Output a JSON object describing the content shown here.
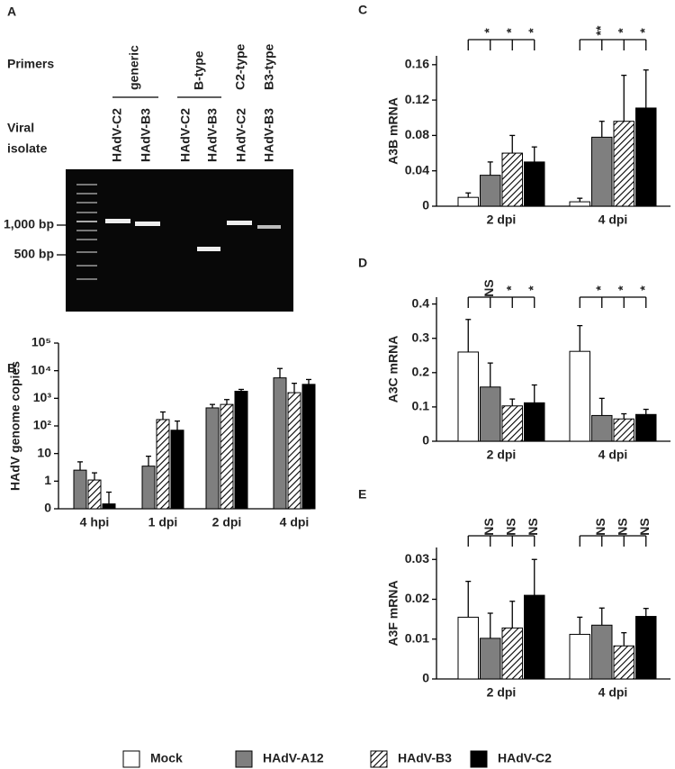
{
  "panel_a": {
    "panel": "A",
    "primers_label": "Primers",
    "isolate_label": [
      "Viral",
      "isolate"
    ],
    "primers": [
      "generic",
      "B-type",
      "C2-type",
      "B3-type"
    ],
    "lanes": [
      "HAdV-C2",
      "HAdV-B3",
      "HAdV-C2",
      "HAdV-B3",
      "HAdV-C2",
      "HAdV-B3"
    ],
    "markers": [
      "1,000 bp",
      "500 bp"
    ]
  },
  "legend": [
    {
      "name": "Mock",
      "color": "#ffffff"
    },
    {
      "name": "HAdV-A12",
      "color": "#7f7f7f"
    },
    {
      "name": "HAdV-B3",
      "color": "hatch"
    },
    {
      "name": "HAdV-C2",
      "color": "#000000"
    }
  ],
  "chart_data": [
    {
      "type": "bar",
      "panel": "B",
      "ylabel": "HAdV genome copies",
      "log": true,
      "ylim": [
        0.1,
        100000
      ],
      "yticks": [
        0,
        1,
        10,
        {
          "value": 100,
          "label": "10²"
        },
        {
          "value": 1000,
          "label": "10³"
        },
        {
          "value": 10000,
          "label": "10⁴"
        },
        {
          "value": 100000,
          "label": "10⁵"
        }
      ],
      "categories": [
        "4 hpi",
        "1 dpi",
        "2 dpi",
        "4 dpi"
      ],
      "series": [
        {
          "color": "#7f7f7f",
          "values": [
            2.5,
            3.5,
            450,
            5500
          ],
          "errors": [
            2.5,
            4.5,
            150,
            6500
          ]
        },
        {
          "color": "hatch",
          "values": [
            1.1,
            170,
            600,
            1600
          ],
          "errors": [
            0.9,
            150,
            300,
            1900
          ]
        },
        {
          "color": "#000000",
          "values": [
            0.15,
            70,
            1800,
            3200
          ],
          "errors": [
            0.25,
            80,
            300,
            1600
          ]
        }
      ]
    },
    {
      "type": "bar",
      "panel": "C",
      "ylabel": "A3B mRNA",
      "ylim": [
        0,
        0.17
      ],
      "yticks": [
        0,
        0.04,
        0.08,
        0.12,
        0.16
      ],
      "categories": [
        "2 dpi",
        "4 dpi"
      ],
      "annotations": [
        [
          "*",
          "*",
          "*"
        ],
        [
          "**",
          "*",
          "*"
        ]
      ],
      "series": [
        {
          "color": "#ffffff",
          "values": [
            0.01,
            0.005
          ],
          "errors": [
            0.005,
            0.004
          ]
        },
        {
          "color": "#7f7f7f",
          "values": [
            0.035,
            0.078
          ],
          "errors": [
            0.015,
            0.018
          ]
        },
        {
          "color": "hatch",
          "values": [
            0.06,
            0.096
          ],
          "errors": [
            0.02,
            0.052
          ]
        },
        {
          "color": "#000000",
          "values": [
            0.05,
            0.111
          ],
          "errors": [
            0.017,
            0.043
          ]
        }
      ]
    },
    {
      "type": "bar",
      "panel": "D",
      "ylabel": "A3C mRNA",
      "ylim": [
        0,
        0.42
      ],
      "yticks": [
        0,
        0.1,
        0.2,
        0.3,
        0.4
      ],
      "categories": [
        "2 dpi",
        "4 dpi"
      ],
      "annotations": [
        [
          "NS",
          "*",
          "*"
        ],
        [
          "*",
          "*",
          "*"
        ]
      ],
      "series": [
        {
          "color": "#ffffff",
          "values": [
            0.26,
            0.262
          ],
          "errors": [
            0.095,
            0.075
          ]
        },
        {
          "color": "#7f7f7f",
          "values": [
            0.158,
            0.075
          ],
          "errors": [
            0.07,
            0.05
          ]
        },
        {
          "color": "hatch",
          "values": [
            0.103,
            0.065
          ],
          "errors": [
            0.02,
            0.015
          ]
        },
        {
          "color": "#000000",
          "values": [
            0.112,
            0.078
          ],
          "errors": [
            0.052,
            0.015
          ]
        }
      ]
    },
    {
      "type": "bar",
      "panel": "E",
      "ylabel": "A3F mRNA",
      "ylim": [
        0,
        0.033
      ],
      "yticks": [
        0,
        0.01,
        0.02,
        0.03
      ],
      "categories": [
        "2 dpi",
        "4 dpi"
      ],
      "annotations": [
        [
          "NS",
          "NS",
          "NS"
        ],
        [
          "NS",
          "NS",
          "NS"
        ]
      ],
      "series": [
        {
          "color": "#ffffff",
          "values": [
            0.0155,
            0.0112
          ],
          "errors": [
            0.009,
            0.0043
          ]
        },
        {
          "color": "#7f7f7f",
          "values": [
            0.0102,
            0.0135
          ],
          "errors": [
            0.0063,
            0.0043
          ]
        },
        {
          "color": "hatch",
          "values": [
            0.0128,
            0.0083
          ],
          "errors": [
            0.0067,
            0.0033
          ]
        },
        {
          "color": "#000000",
          "values": [
            0.021,
            0.0157
          ],
          "errors": [
            0.009,
            0.002
          ]
        }
      ]
    }
  ]
}
